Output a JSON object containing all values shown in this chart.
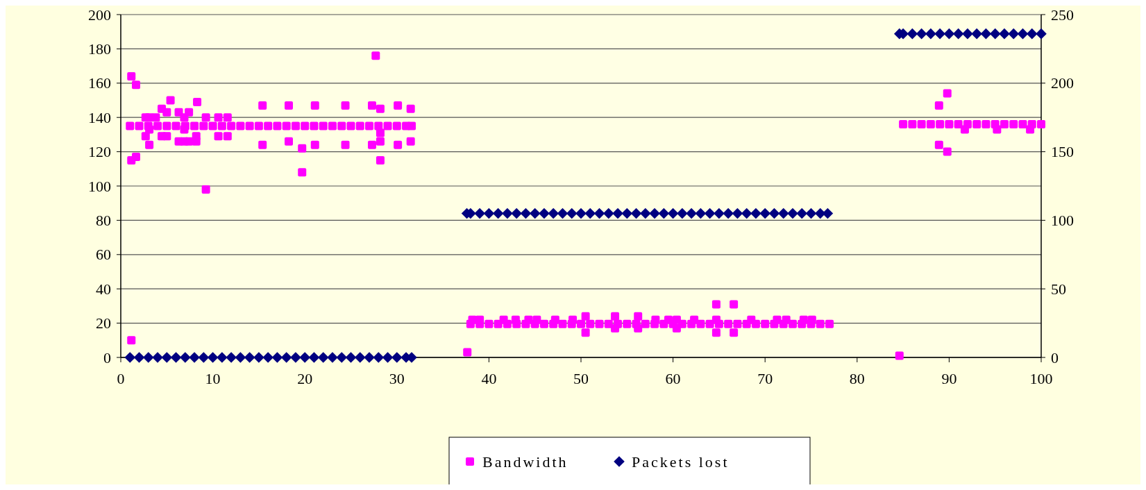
{
  "chart_data": {
    "type": "scatter",
    "xlim": [
      0,
      100
    ],
    "xticks": [
      0,
      10,
      20,
      30,
      40,
      50,
      60,
      70,
      80,
      90,
      100
    ],
    "ylim": [
      0,
      200
    ],
    "yticks": [
      0,
      20,
      40,
      60,
      80,
      100,
      120,
      140,
      160,
      180,
      200
    ],
    "y2lim": [
      0,
      250
    ],
    "y2ticks": [
      0,
      50,
      100,
      150,
      200,
      250
    ],
    "grid": "y",
    "legend": "bottom",
    "series": [
      {
        "name": "Bandwidth",
        "color": "#ff00ff",
        "marker": "square",
        "x": [
          1,
          2,
          3,
          4,
          5,
          6,
          7,
          8,
          9,
          10,
          11,
          12,
          13,
          14,
          15,
          16,
          17,
          18,
          19,
          20,
          21,
          22,
          23,
          24,
          25,
          26,
          27,
          28,
          29,
          30,
          31,
          31.6,
          1.15,
          1.66,
          1.15,
          1.66,
          1.15,
          5.4,
          8.3,
          4.45,
          5,
          6.3,
          7.4,
          2.7,
          3.1,
          3.8,
          9.25,
          10.6,
          11.6,
          6.9,
          2.7,
          3.1,
          4.45,
          5,
          6.3,
          6.9,
          7.4,
          8.2,
          8.2,
          10.6,
          11.6,
          9.25,
          6.9,
          3.1,
          15.4,
          18.25,
          21.1,
          24.4,
          27.3,
          28.2,
          30.1,
          31.5,
          15.4,
          18.25,
          21.1,
          24.4,
          27.3,
          28.2,
          30.1,
          31.5,
          19.7,
          19.7,
          28.2,
          27.7,
          28.2,
          38,
          39,
          40,
          41,
          42,
          43,
          44,
          45,
          46,
          47,
          48,
          49,
          50,
          51,
          52,
          53,
          54,
          55,
          56,
          57,
          58,
          59,
          60,
          61,
          62,
          63,
          64,
          65,
          66,
          67,
          68,
          69,
          70,
          71,
          72,
          73,
          74,
          75,
          76,
          77,
          37.65,
          38.2,
          39,
          41.6,
          42.9,
          44.3,
          45.2,
          47.2,
          49.1,
          50.5,
          50.5,
          53.7,
          53.7,
          56.2,
          56.2,
          58.1,
          59.5,
          60.4,
          60.4,
          62.3,
          64.7,
          64.7,
          64.7,
          66.6,
          66.6,
          68.5,
          71.3,
          72.3,
          74.2,
          75.1,
          85,
          86,
          87,
          88,
          89,
          90,
          91,
          92,
          93,
          94,
          95,
          96,
          97,
          98,
          99,
          100,
          84.6,
          88.9,
          89.8,
          88.9,
          89.8,
          91.7,
          95.2,
          98.8
        ],
        "values": [
          135,
          135,
          135,
          135,
          135,
          135,
          135,
          135,
          135,
          135,
          135,
          135,
          135,
          135,
          135,
          135,
          135,
          135,
          135,
          135,
          135,
          135,
          135,
          135,
          135,
          135,
          135,
          135,
          135,
          135,
          135,
          135,
          164,
          159,
          115,
          117,
          10,
          150,
          149,
          145,
          143,
          143,
          143,
          140,
          140,
          140,
          140,
          140,
          140,
          140,
          129,
          124,
          129,
          129,
          126,
          126,
          126,
          126,
          129,
          129,
          129,
          98,
          133,
          133,
          147,
          147,
          147,
          147,
          147,
          145,
          147,
          145,
          124,
          126,
          124,
          124,
          124,
          126,
          124,
          126,
          122,
          108,
          115,
          176,
          131,
          19.5,
          19.5,
          19.5,
          19.5,
          19.5,
          19.5,
          19.5,
          19.5,
          19.5,
          19.5,
          19.5,
          19.5,
          19.5,
          19.5,
          19.5,
          19.5,
          19.5,
          19.5,
          19.5,
          19.5,
          19.5,
          19.5,
          19.5,
          19.5,
          19.5,
          19.5,
          19.5,
          19.5,
          19.5,
          19.5,
          19.5,
          19.5,
          19.5,
          19.5,
          19.5,
          19.5,
          19.5,
          19.5,
          19.5,
          19.5,
          3,
          22,
          22,
          22,
          22,
          22,
          22,
          22,
          22,
          24,
          14.5,
          24,
          17,
          24,
          17,
          22,
          22,
          22,
          17,
          22,
          31,
          14.5,
          22,
          31,
          14.5,
          22,
          22,
          22,
          22,
          22,
          136,
          136,
          136,
          136,
          136,
          136,
          136,
          136,
          136,
          136,
          136,
          136,
          136,
          136,
          136,
          136,
          1,
          147,
          154,
          124,
          120,
          133,
          133,
          133
        ]
      },
      {
        "name": "Packets lost",
        "color": "#000080",
        "marker": "diamond",
        "axis": "y2",
        "x": [
          1,
          2,
          3,
          4,
          5,
          6,
          7,
          8,
          9,
          10,
          11,
          12,
          13,
          14,
          15,
          16,
          17,
          18,
          19,
          20,
          21,
          22,
          23,
          24,
          25,
          26,
          27,
          28,
          29,
          30,
          31,
          31.6,
          37.6,
          38,
          39,
          40,
          41,
          42,
          43,
          44,
          45,
          46,
          47,
          48,
          49,
          50,
          51,
          52,
          53,
          54,
          55,
          56,
          57,
          58,
          59,
          60,
          61,
          62,
          63,
          64,
          65,
          66,
          67,
          68,
          69,
          70,
          71,
          72,
          73,
          74,
          75,
          76,
          76.8,
          84.6,
          85,
          86,
          87,
          88,
          89,
          90,
          91,
          92,
          93,
          94,
          95,
          96,
          97,
          98,
          99,
          100
        ],
        "values": [
          0,
          0,
          0,
          0,
          0,
          0,
          0,
          0,
          0,
          0,
          0,
          0,
          0,
          0,
          0,
          0,
          0,
          0,
          0,
          0,
          0,
          0,
          0,
          0,
          0,
          0,
          0,
          0,
          0,
          0,
          0,
          0,
          105,
          105,
          105,
          105,
          105,
          105,
          105,
          105,
          105,
          105,
          105,
          105,
          105,
          105,
          105,
          105,
          105,
          105,
          105,
          105,
          105,
          105,
          105,
          105,
          105,
          105,
          105,
          105,
          105,
          105,
          105,
          105,
          105,
          105,
          105,
          105,
          105,
          105,
          105,
          105,
          105,
          236,
          236,
          236,
          236,
          236,
          236,
          236,
          236,
          236,
          236,
          236,
          236,
          236,
          236,
          236,
          236,
          236
        ]
      }
    ]
  }
}
